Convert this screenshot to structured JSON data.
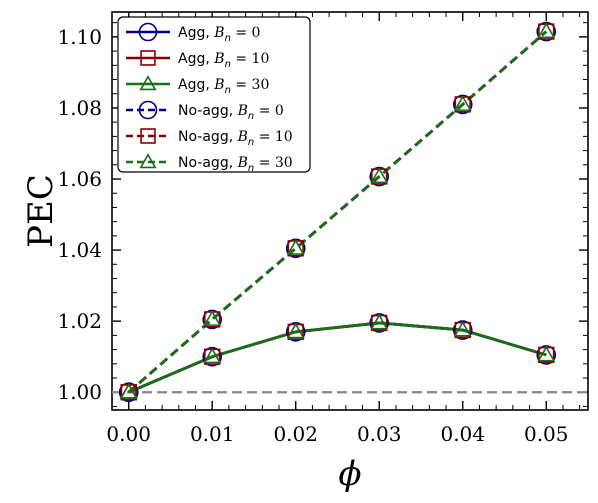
{
  "chart_data": {
    "type": "line",
    "xlabel": "ϕ",
    "ylabel": "PEC",
    "xlim": [
      -0.002,
      0.055
    ],
    "ylim": [
      0.995,
      1.107
    ],
    "xticks": [
      "0.00",
      "0.01",
      "0.02",
      "0.03",
      "0.04",
      "0.05"
    ],
    "yticks": [
      "1.00",
      "1.02",
      "1.04",
      "1.06",
      "1.08",
      "1.10"
    ],
    "x": [
      0.0,
      0.01,
      0.02,
      0.03,
      0.04,
      0.05
    ],
    "reference_line": {
      "y": 1.0,
      "color": "#888888",
      "style": "dashed"
    },
    "legend_position": "top-left",
    "series": [
      {
        "name_prefix": "Agg, ",
        "name_math": "B",
        "name_sub": "n",
        "name_value": " = 0",
        "marker": "circle",
        "linestyle": "solid",
        "color": "#00008b",
        "values": [
          1.0,
          1.01,
          1.017,
          1.0195,
          1.0175,
          1.0105
        ]
      },
      {
        "name_prefix": "Agg, ",
        "name_math": "B",
        "name_sub": "n",
        "name_value": " = 10",
        "marker": "square",
        "linestyle": "solid",
        "color": "#8b0000",
        "values": [
          1.0,
          1.01,
          1.017,
          1.0195,
          1.0175,
          1.0105
        ]
      },
      {
        "name_prefix": "Agg, ",
        "name_math": "B",
        "name_sub": "n",
        "name_value": " = 30",
        "marker": "triangle",
        "linestyle": "solid",
        "color": "#1a6e1a",
        "values": [
          1.0,
          1.01,
          1.017,
          1.0195,
          1.0175,
          1.0105
        ]
      },
      {
        "name_prefix": "No-agg, ",
        "name_math": "B",
        "name_sub": "n",
        "name_value": " = 0",
        "marker": "circle",
        "linestyle": "dashed",
        "color": "#00008b",
        "values": [
          1.0,
          1.0205,
          1.0405,
          1.0607,
          1.081,
          1.1015
        ]
      },
      {
        "name_prefix": "No-agg, ",
        "name_math": "B",
        "name_sub": "n",
        "name_value": " = 10",
        "marker": "square",
        "linestyle": "dashed",
        "color": "#8b0000",
        "values": [
          1.0,
          1.0205,
          1.0405,
          1.0607,
          1.081,
          1.1015
        ]
      },
      {
        "name_prefix": "No-agg, ",
        "name_math": "B",
        "name_sub": "n",
        "name_value": " = 30",
        "marker": "triangle",
        "linestyle": "dashed",
        "color": "#1a6e1a",
        "values": [
          1.0,
          1.0205,
          1.0405,
          1.0607,
          1.081,
          1.1015
        ]
      }
    ]
  }
}
